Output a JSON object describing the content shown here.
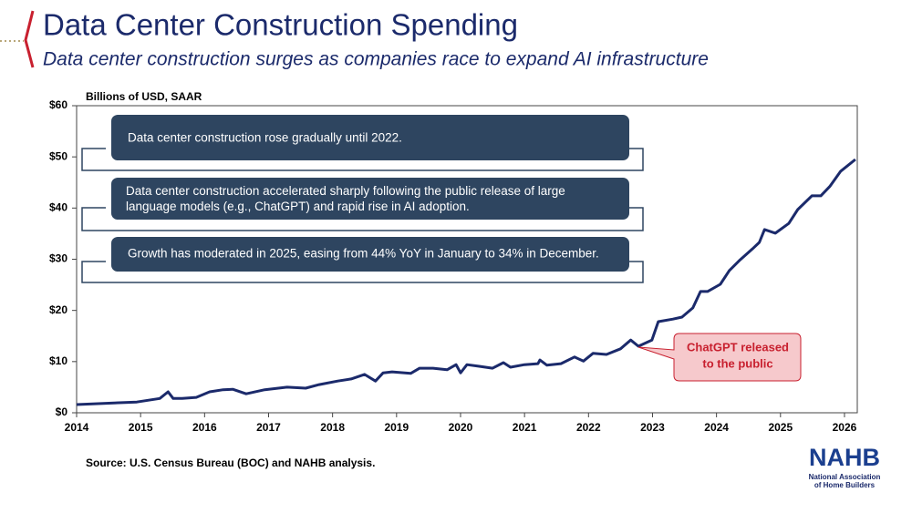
{
  "chart_data": {
    "type": "line",
    "title": "Data Center Construction Spending",
    "subtitle": "Data center construction surges as companies race to expand AI infrastructure",
    "y_label": "Billions of USD, SAAR",
    "source": "Source: U.S. Census Bureau (BOC) and NAHB analysis.",
    "annotations": [
      "Data center construction rose gradually until 2022.",
      "Data center construction accelerated sharply following the public release of large language models (e.g., ChatGPT) and rapid rise in AI adoption.",
      "Growth has moderated in 2025, easing from 44% YoY in January to 34% in December."
    ],
    "callout": [
      "ChatGPT released",
      "to the public"
    ],
    "logo": {
      "name": "NAHB",
      "lines": [
        "National Association",
        "of Home Builders"
      ]
    },
    "x": [
      2014.0,
      2014.94,
      2015.3,
      2015.43,
      2015.51,
      2015.65,
      2015.87,
      2016.08,
      2016.29,
      2016.44,
      2016.65,
      2016.94,
      2017.29,
      2017.58,
      2017.79,
      2018.08,
      2018.29,
      2018.5,
      2018.67,
      2018.79,
      2018.93,
      2019.22,
      2019.36,
      2019.57,
      2019.79,
      2019.93,
      2020.0,
      2020.1,
      2020.28,
      2020.5,
      2020.67,
      2020.78,
      2021.0,
      2021.21,
      2021.24,
      2021.35,
      2021.57,
      2021.78,
      2021.92,
      2022.07,
      2022.28,
      2022.5,
      2022.66,
      2022.78,
      2022.99,
      2023.09,
      2023.32,
      2023.46,
      2023.63,
      2023.75,
      2023.86,
      2024.06,
      2024.2,
      2024.37,
      2024.56,
      2024.67,
      2024.75,
      2024.92,
      2025.13,
      2025.27,
      2025.49,
      2025.63,
      2025.77,
      2025.94,
      2026.06,
      2026.17
    ],
    "series": [
      {
        "name": "Data Center Construction Spending",
        "color": "#1b2a6b",
        "values": [
          1.6,
          2.1,
          2.8,
          4.1,
          2.8,
          2.8,
          3.0,
          4.1,
          4.5,
          4.6,
          3.7,
          4.5,
          5.0,
          4.8,
          5.5,
          6.2,
          6.6,
          7.5,
          6.2,
          7.8,
          8.0,
          7.7,
          8.7,
          8.7,
          8.4,
          9.4,
          7.8,
          9.4,
          9.1,
          8.7,
          9.8,
          8.9,
          9.4,
          9.6,
          10.3,
          9.3,
          9.6,
          10.9,
          10.1,
          11.6,
          11.4,
          12.5,
          14.2,
          13.0,
          14.2,
          17.8,
          18.3,
          18.7,
          20.5,
          23.7,
          23.7,
          25.1,
          27.8,
          29.9,
          32.0,
          33.3,
          35.8,
          35.1,
          37.0,
          39.7,
          42.4,
          42.4,
          44.2,
          47.2,
          48.4,
          49.5
        ]
      }
    ],
    "xlim": [
      2014,
      2026.2
    ],
    "xticks": [
      2014,
      2015,
      2016,
      2017,
      2018,
      2019,
      2020,
      2021,
      2022,
      2023,
      2024,
      2025,
      2026
    ],
    "ylim": [
      0,
      60
    ],
    "yticks": [
      {
        "value": 0,
        "label": "$0"
      },
      {
        "value": 10,
        "label": "$10"
      },
      {
        "value": 20,
        "label": "$20"
      },
      {
        "value": 30,
        "label": "$30"
      },
      {
        "value": 40,
        "label": "$40"
      },
      {
        "value": 50,
        "label": "$50"
      },
      {
        "value": 60,
        "label": "$60"
      }
    ],
    "grid": false
  }
}
